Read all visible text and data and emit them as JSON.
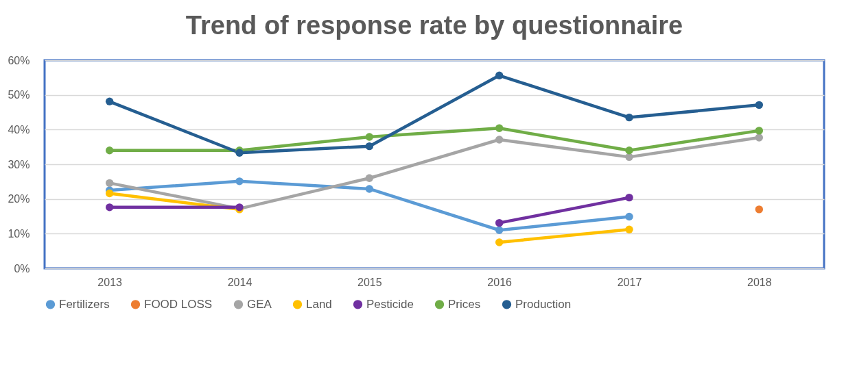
{
  "chart_data": {
    "type": "line",
    "title": "Trend of response rate by questionnaire",
    "categories": [
      "2013",
      "2014",
      "2015",
      "2016",
      "2017",
      "2018"
    ],
    "series": [
      {
        "name": "Fertilizers",
        "color": "#5b9bd5",
        "values": [
          22.5,
          25.1,
          22.9,
          11.0,
          14.9,
          null
        ]
      },
      {
        "name": "FOOD LOSS",
        "type": "scatter",
        "color": "#ed7d31",
        "values": [
          null,
          null,
          null,
          null,
          null,
          17.0
        ]
      },
      {
        "name": "GEA",
        "color": "#a5a5a5",
        "values": [
          24.6,
          17.2,
          26.0,
          37.1,
          32.1,
          37.7
        ]
      },
      {
        "name": "Land",
        "color": "#ffc000",
        "values": [
          21.6,
          17.0,
          null,
          7.5,
          11.2,
          null
        ]
      },
      {
        "name": "Pesticide",
        "color": "#7030a0",
        "values": [
          17.6,
          17.6,
          null,
          13.1,
          20.4,
          null
        ]
      },
      {
        "name": "Prices",
        "color": "#70ad47",
        "values": [
          34.0,
          34.0,
          37.9,
          40.4,
          34.0,
          39.7
        ]
      },
      {
        "name": "Production",
        "color": "#255e91",
        "values": [
          48.1,
          33.3,
          35.2,
          55.6,
          43.5,
          47.1
        ]
      }
    ],
    "ylim": [
      0,
      60
    ],
    "yticks": [
      {
        "value": 0,
        "label": "0%"
      },
      {
        "value": 10,
        "label": "10%"
      },
      {
        "value": 20,
        "label": "20%"
      },
      {
        "value": 30,
        "label": "30%"
      },
      {
        "value": 40,
        "label": "40%"
      },
      {
        "value": 50,
        "label": "50%"
      },
      {
        "value": 60,
        "label": "60%"
      }
    ],
    "grid": "y",
    "legend": "bottom",
    "marker": "circle",
    "line_style": "solid"
  }
}
